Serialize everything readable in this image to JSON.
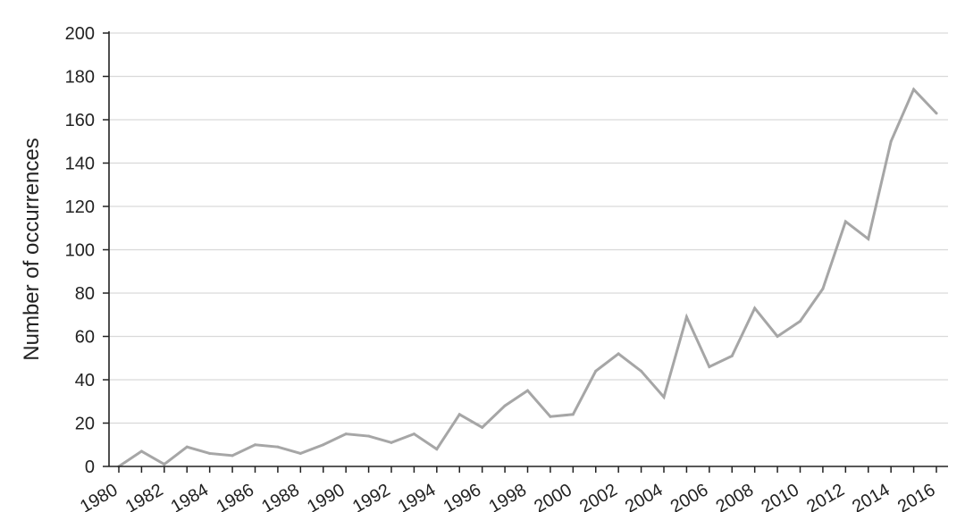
{
  "chart_data": {
    "type": "line",
    "title": "",
    "xlabel": "",
    "ylabel": "Number of occurrences",
    "ylim": [
      0,
      200
    ],
    "yticks": [
      0,
      20,
      40,
      60,
      80,
      100,
      120,
      140,
      160,
      180,
      200
    ],
    "xlim": [
      1980,
      2016
    ],
    "xticks": [
      "1980",
      "1982",
      "1984",
      "1986",
      "1988",
      "1990",
      "1992",
      "1994",
      "1996",
      "1998",
      "2000",
      "2002",
      "2004",
      "2006",
      "2008",
      "2010",
      "2012",
      "2014",
      "2016"
    ],
    "grid": true,
    "legend": "none",
    "colors": {
      "line": "#a6a6a6",
      "grid": "#d9d9d9",
      "axis": "#222222"
    },
    "series": [
      {
        "x": [
          1980,
          1981,
          1982,
          1983,
          1984,
          1985,
          1986,
          1987,
          1988,
          1989,
          1990,
          1991,
          1992,
          1993,
          1994,
          1995,
          1996,
          1997,
          1998,
          1999,
          2000,
          2001,
          2002,
          2003,
          2004,
          2005,
          2006,
          2007,
          2008,
          2009,
          2010,
          2011,
          2012,
          2013,
          2014,
          2015,
          2016
        ],
        "values": [
          0,
          7,
          1,
          9,
          6,
          5,
          10,
          9,
          6,
          10,
          15,
          14,
          11,
          15,
          8,
          24,
          18,
          28,
          35,
          23,
          24,
          44,
          52,
          44,
          32,
          69,
          46,
          51,
          73,
          60,
          67,
          82,
          113,
          105,
          150,
          174,
          163
        ]
      }
    ]
  }
}
